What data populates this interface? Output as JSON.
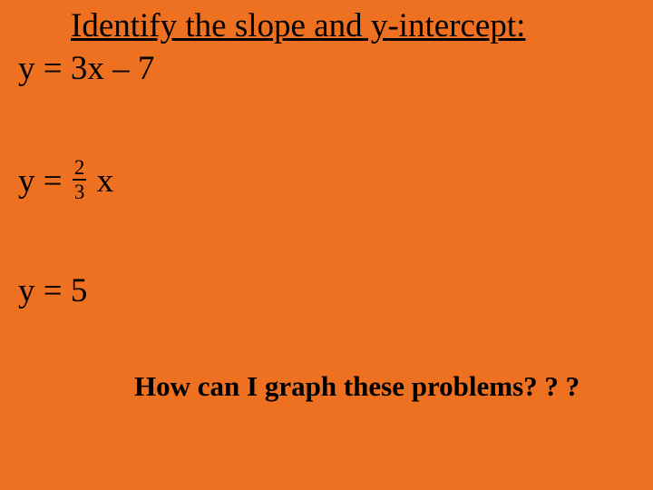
{
  "background_color": "#ee7021",
  "text_color": "#000000",
  "font_family": "Times New Roman",
  "title": {
    "text": "Identify the slope and y-intercept:",
    "fontsize": 37,
    "underline": true
  },
  "equations": [
    {
      "type": "linear",
      "full": "y = 3x – 7",
      "lhs": "y",
      "coefficient_text": "3",
      "variable": "x",
      "constant_text": "– 7",
      "fontsize": 37
    },
    {
      "type": "fraction_coeff",
      "lhs": "y",
      "eq_prefix": "y = ",
      "fraction": {
        "numerator": "2",
        "denominator": "3",
        "fontsize": 23,
        "rule_color": "#000000"
      },
      "after_fraction": " x",
      "fontsize": 37
    },
    {
      "type": "constant",
      "full": "y = 5",
      "lhs": "y",
      "value": "5",
      "fontsize": 37
    }
  ],
  "footer": {
    "text": "How can I graph these problems? ? ?",
    "fontsize": 31,
    "bold": true
  }
}
